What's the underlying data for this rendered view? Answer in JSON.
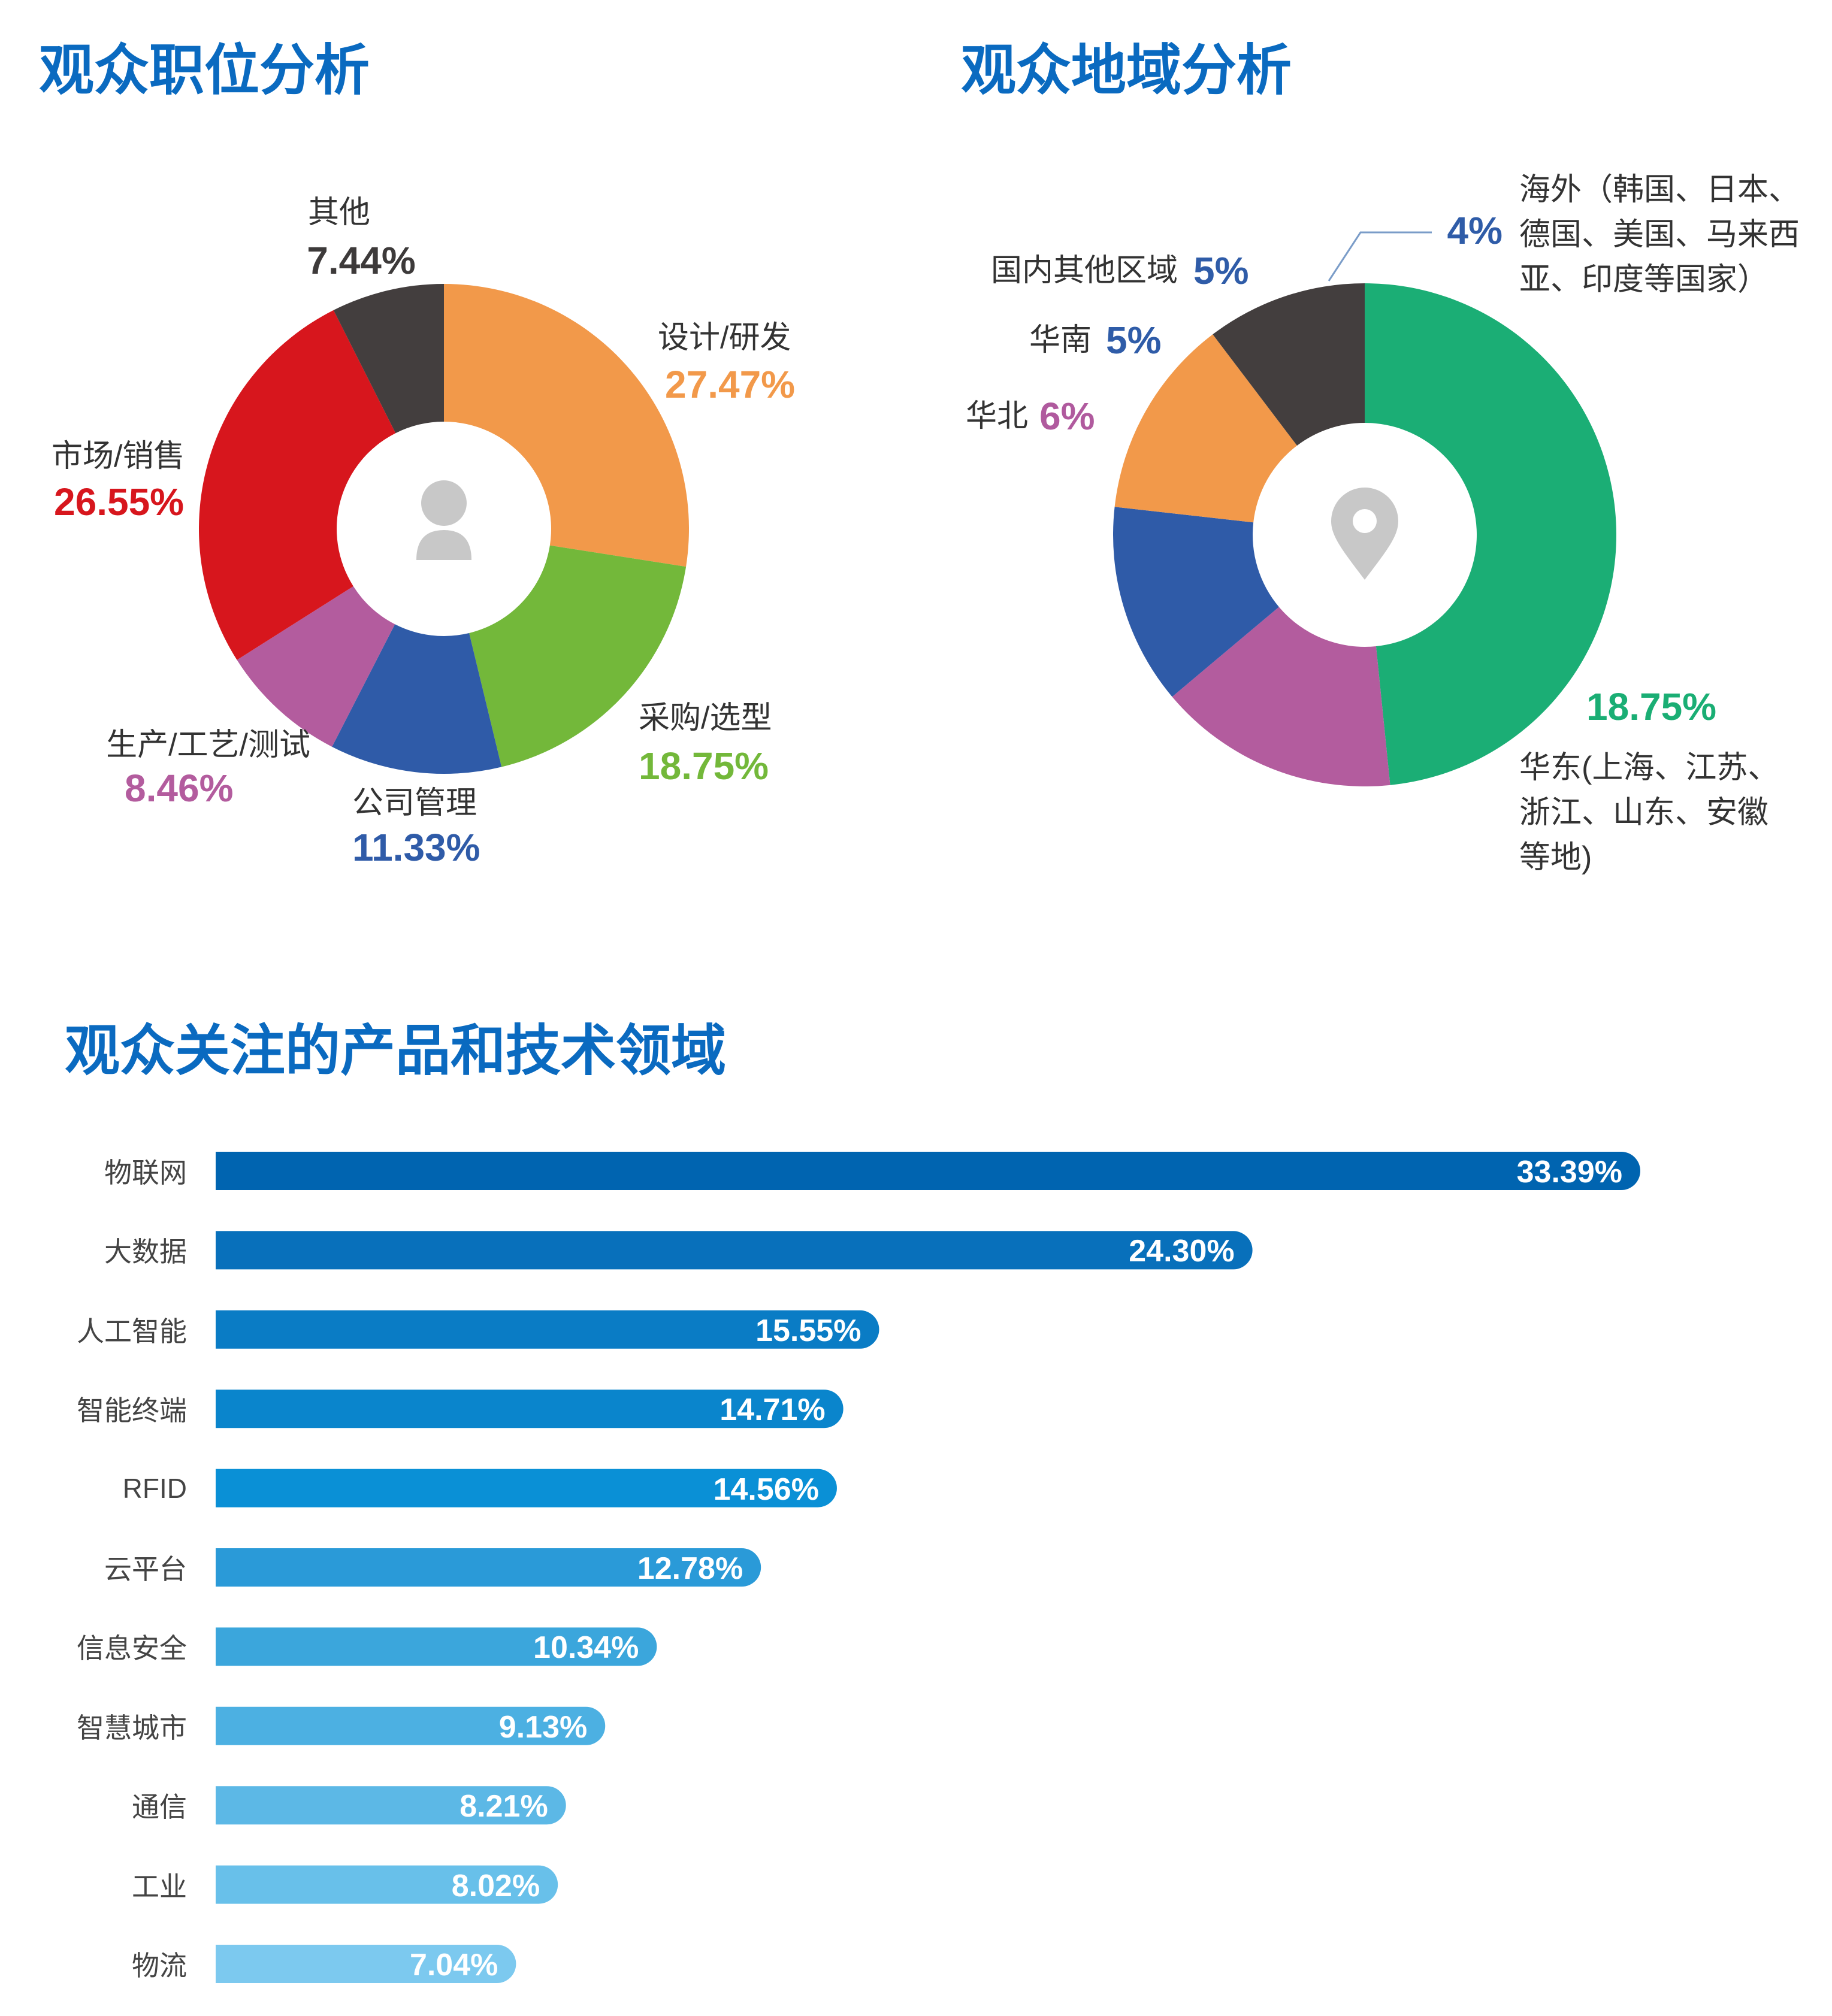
{
  "chart_data": [
    {
      "type": "pie",
      "title": "观众职位分析",
      "categories": [
        "设计/研发",
        "采购/选型",
        "公司管理",
        "生产/工艺/测试",
        "市场/销售",
        "其他"
      ],
      "values": [
        27.47,
        18.75,
        11.33,
        8.46,
        26.55,
        7.44
      ],
      "value_labels": [
        "27.47%",
        "18.75%",
        "11.33%",
        "8.46%",
        "26.55%",
        "7.44%"
      ],
      "colors": [
        "#f2994a",
        "#73b83a",
        "#2f5ba8",
        "#b35c9e",
        "#d7161d",
        "#433e3e"
      ],
      "label_colors": [
        "#f2994a",
        "#73b83a",
        "#2f5ba8",
        "#b35c9e",
        "#d7161d",
        "#3d3a3a"
      ]
    },
    {
      "type": "pie",
      "title": "观众地域分析",
      "categories": [
        "华东(上海、江苏、浙江、山东、安徽等地)",
        "华北",
        "华南",
        "国内其他区域",
        "海外（韩国、日本、德国、美国、马来西亚、印度等国家）"
      ],
      "values": [
        18.75,
        6,
        5,
        5,
        4
      ],
      "value_labels": [
        "18.75%",
        "6%",
        "5%",
        "5%",
        "4%"
      ],
      "colors": [
        "#1bae75",
        "#b35c9e",
        "#2f5ba8",
        "#f2994a",
        "#433e3e"
      ],
      "label_colors": [
        "#1aae74",
        "#b05a9e",
        "#2f5ca8",
        "#2f5ca8",
        "#2f5ca8"
      ]
    },
    {
      "type": "hbar",
      "title": "观众关注的产品和技术领域",
      "categories": [
        "物联网",
        "大数据",
        "人工智能",
        "智能终端",
        "RFID",
        "云平台",
        "信息安全",
        "智慧城市",
        "通信",
        "工业",
        "物流"
      ],
      "values": [
        33.39,
        24.3,
        15.55,
        14.71,
        14.56,
        12.78,
        10.34,
        9.13,
        8.21,
        8.02,
        7.04
      ],
      "value_labels": [
        "33.39%",
        "24.30%",
        "15.55%",
        "14.71%",
        "14.56%",
        "12.78%",
        "10.34%",
        "9.13%",
        "8.21%",
        "8.02%",
        "7.04%"
      ],
      "colors": [
        "#0064b0",
        "#0870bb",
        "#0a7cc5",
        "#0a85cc",
        "#0a90d6",
        "#2a9ad8",
        "#3ba6dc",
        "#4cb0e2",
        "#5cb8e6",
        "#68c0ea",
        "#7cc9ef"
      ]
    }
  ]
}
